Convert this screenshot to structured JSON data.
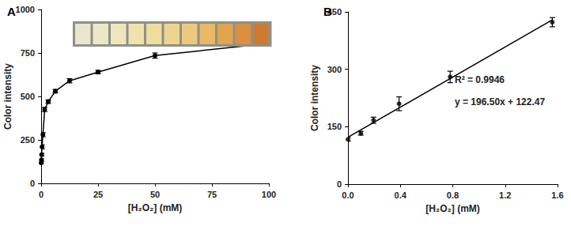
{
  "chart_data": [
    {
      "type": "line",
      "title": "A",
      "x_label": "[H₂O₂] (mM)",
      "y_label": "Color intensity",
      "xlim": [
        0,
        100
      ],
      "xticks": [
        0,
        25,
        50,
        75,
        100
      ],
      "ylim": [
        0,
        1000
      ],
      "yticks": [
        0,
        250,
        500,
        750,
        1000
      ],
      "grid": false,
      "series": [
        {
          "type": "line",
          "color": "#000000",
          "marker": "circle",
          "line_style": "solid",
          "x": [
            0,
            0.1,
            0.2,
            0.39,
            0.78,
            1.56,
            3.125,
            6.25,
            12.5,
            25,
            50,
            100
          ],
          "values": [
            118,
            135,
            165,
            210,
            280,
            425,
            470,
            530,
            590,
            640,
            735,
            805
          ],
          "errors": [
            6,
            6,
            8,
            12,
            12,
            12,
            10,
            10,
            12,
            10,
            15,
            15
          ]
        }
      ]
    },
    {
      "type": "scatter",
      "title": "B",
      "x_label": "[H₂O₂] (mM)",
      "y_label": "Color intensity",
      "xlim": [
        0,
        1.6
      ],
      "xticks": [
        {
          "value": 0,
          "label": "0.0"
        },
        {
          "value": 0.4,
          "label": "0.4"
        },
        {
          "value": 0.8,
          "label": "0.8"
        },
        {
          "value": 1.2,
          "label": "1.2"
        },
        {
          "value": 1.6,
          "label": "1.6"
        }
      ],
      "ylim": [
        0,
        450
      ],
      "yticks": [
        0,
        150,
        300,
        450
      ],
      "grid": false,
      "annotations": [
        "R² = 0.9946",
        "y = 196.50x + 122.47"
      ],
      "series": [
        {
          "type": "scatter",
          "color": "#000000",
          "marker": "circle",
          "x": [
            0,
            0.098,
            0.195,
            0.39,
            0.78,
            1.56
          ],
          "values": [
            117,
            133,
            167,
            210,
            280,
            423
          ],
          "errors": [
            5,
            5,
            8,
            18,
            15,
            12
          ]
        },
        {
          "type": "line",
          "color": "#000000",
          "marker": "none",
          "line_style": "solid",
          "x": [
            0,
            1.56
          ],
          "values": [
            122.47,
            429.01
          ]
        }
      ]
    }
  ]
}
